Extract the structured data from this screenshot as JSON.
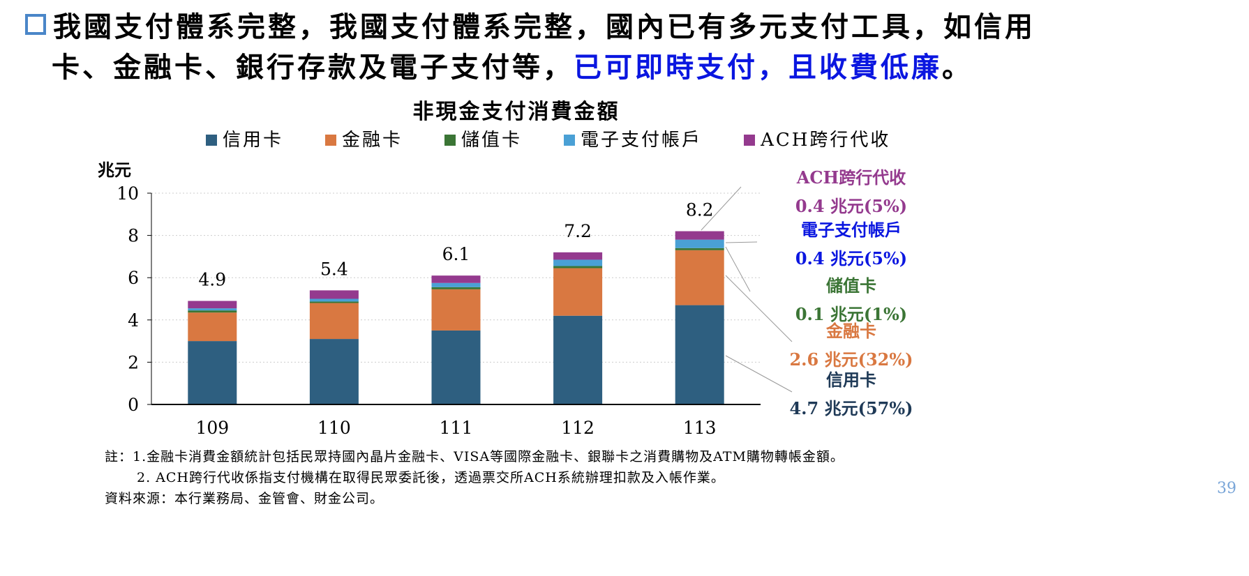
{
  "headline": {
    "line1": "我國支付體系完整，我國支付體系完整，國內已有多元支付工具，如信用",
    "line2_plain": "卡、金融卡、銀行存款及電子支付等，",
    "line2_highlight": "已可即時支付，且收費低廉",
    "line2_end": "。"
  },
  "chart_data": {
    "type": "bar",
    "stacked": true,
    "title": "非現金支付消費金額",
    "ylabel": "兆元",
    "xlabel": "",
    "categories": [
      "109",
      "110",
      "111",
      "112",
      "113"
    ],
    "ylim": [
      0,
      10
    ],
    "yticks": [
      0,
      2,
      4,
      6,
      8,
      10
    ],
    "grid": true,
    "legend": "top",
    "series": [
      {
        "name": "信用卡",
        "color": "#2e5f80",
        "values": [
          3.0,
          3.1,
          3.5,
          4.2,
          4.7
        ]
      },
      {
        "name": "金融卡",
        "color": "#d97841",
        "values": [
          1.35,
          1.7,
          1.95,
          2.25,
          2.6
        ]
      },
      {
        "name": "儲值卡",
        "color": "#3b7535",
        "values": [
          0.1,
          0.07,
          0.1,
          0.1,
          0.1
        ]
      },
      {
        "name": "電子支付帳戶",
        "color": "#4aa0d5",
        "values": [
          0.1,
          0.13,
          0.2,
          0.3,
          0.4
        ]
      },
      {
        "name": "ACH跨行代收",
        "color": "#943a8e",
        "values": [
          0.35,
          0.4,
          0.35,
          0.35,
          0.4
        ]
      }
    ],
    "totals": [
      "4.9",
      "5.4",
      "6.1",
      "7.2",
      "8.2"
    ],
    "annotations": [
      {
        "label": "ACH跨行代收",
        "value": "0.4 兆元(5%)",
        "color": "#943a8e"
      },
      {
        "label": "電子支付帳戶",
        "value": "0.4 兆元(5%)",
        "color": "#0a16e0"
      },
      {
        "label": "儲值卡",
        "value": "0.1 兆元(1%)",
        "color": "#3b7535"
      },
      {
        "label": "金融卡",
        "value": "2.6 兆元(32%)",
        "color": "#d97841"
      },
      {
        "label": "信用卡",
        "value": "4.7 兆元(57%)",
        "color": "#1f3a57"
      }
    ]
  },
  "notes": {
    "n1": "註：1.金融卡消費金額統計包括民眾持國內晶片金融卡、VISA等國際金融卡、銀聯卡之消費購物及ATM購物轉帳金額。",
    "n2": "2. ACH跨行代收係指支付機構在取得民眾委託後，透過票交所ACH系統辦理扣款及入帳作業。",
    "source": "資料來源：本行業務局、金管會、財金公司。"
  },
  "page_number": "39"
}
